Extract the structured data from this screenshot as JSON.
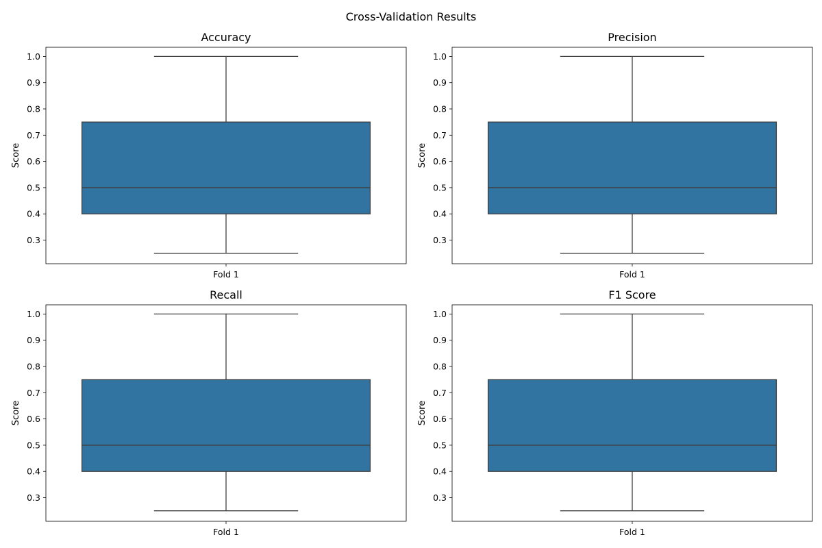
{
  "figure": {
    "suptitle": "Cross-Validation Results"
  },
  "chart_data": [
    {
      "type": "box",
      "title": "Accuracy",
      "ylabel": "Score",
      "xlabel": "",
      "categories": [
        "Fold 1"
      ],
      "ylim": [
        0.21,
        1.035
      ],
      "yticks": [
        0.3,
        0.4,
        0.5,
        0.6,
        0.7,
        0.8,
        0.9,
        1.0
      ],
      "grid": false,
      "boxes": [
        {
          "category": "Fold 1",
          "whisker_low": 0.25,
          "q1": 0.4,
          "median": 0.5,
          "q3": 0.75,
          "whisker_high": 1.0
        }
      ],
      "color": "#3274a1"
    },
    {
      "type": "box",
      "title": "Precision",
      "ylabel": "Score",
      "xlabel": "",
      "categories": [
        "Fold 1"
      ],
      "ylim": [
        0.21,
        1.035
      ],
      "yticks": [
        0.3,
        0.4,
        0.5,
        0.6,
        0.7,
        0.8,
        0.9,
        1.0
      ],
      "grid": false,
      "boxes": [
        {
          "category": "Fold 1",
          "whisker_low": 0.25,
          "q1": 0.4,
          "median": 0.5,
          "q3": 0.75,
          "whisker_high": 1.0
        }
      ],
      "color": "#3274a1"
    },
    {
      "type": "box",
      "title": "Recall",
      "ylabel": "Score",
      "xlabel": "",
      "categories": [
        "Fold 1"
      ],
      "ylim": [
        0.21,
        1.035
      ],
      "yticks": [
        0.3,
        0.4,
        0.5,
        0.6,
        0.7,
        0.8,
        0.9,
        1.0
      ],
      "grid": false,
      "boxes": [
        {
          "category": "Fold 1",
          "whisker_low": 0.25,
          "q1": 0.4,
          "median": 0.5,
          "q3": 0.75,
          "whisker_high": 1.0
        }
      ],
      "color": "#3274a1"
    },
    {
      "type": "box",
      "title": "F1 Score",
      "ylabel": "Score",
      "xlabel": "",
      "categories": [
        "Fold 1"
      ],
      "ylim": [
        0.21,
        1.035
      ],
      "yticks": [
        0.3,
        0.4,
        0.5,
        0.6,
        0.7,
        0.8,
        0.9,
        1.0
      ],
      "grid": false,
      "boxes": [
        {
          "category": "Fold 1",
          "whisker_low": 0.25,
          "q1": 0.4,
          "median": 0.5,
          "q3": 0.75,
          "whisker_high": 1.0
        }
      ],
      "color": "#3274a1"
    }
  ]
}
